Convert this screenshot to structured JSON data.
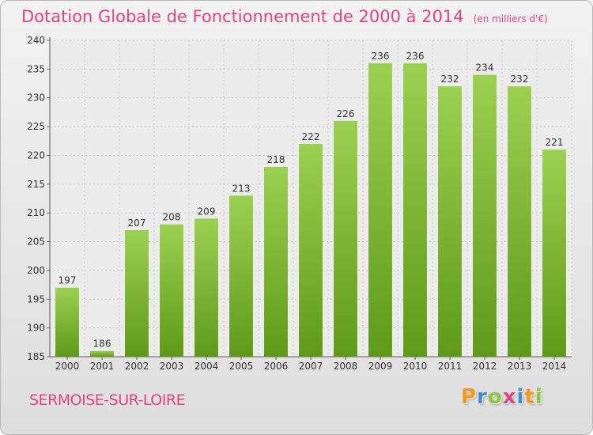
{
  "header": {
    "title": "Dotation Globale de Fonctionnement de 2000 à 2014",
    "unit": "(en milliers d'€)"
  },
  "footer": {
    "city": "SERMOISE-SUR-LOIRE",
    "logo": "Proxiti",
    "logo_colors": [
      "#f7941d",
      "#3b8fd9",
      "#8dc63f",
      "#e0447f",
      "#3b8fd9",
      "#f7941d",
      "#8dc63f"
    ]
  },
  "colors": {
    "accent": "#e0447f",
    "bar_top": "#9bd150",
    "bar_bottom": "#5e9a18"
  },
  "chart_data": {
    "type": "bar",
    "title": "Dotation Globale de Fonctionnement de 2000 à 2014",
    "subtitle": "(en milliers d'€)",
    "categories": [
      "2000",
      "2001",
      "2002",
      "2003",
      "2004",
      "2005",
      "2006",
      "2007",
      "2008",
      "2009",
      "2010",
      "2011",
      "2012",
      "2013",
      "2014"
    ],
    "values": [
      197,
      186,
      207,
      208,
      209,
      213,
      218,
      222,
      226,
      236,
      236,
      232,
      234,
      232,
      221
    ],
    "ylim": [
      185,
      240
    ],
    "yticks": [
      185,
      190,
      195,
      200,
      205,
      210,
      215,
      220,
      225,
      230,
      235,
      240
    ],
    "grid": true,
    "legend": "none"
  }
}
